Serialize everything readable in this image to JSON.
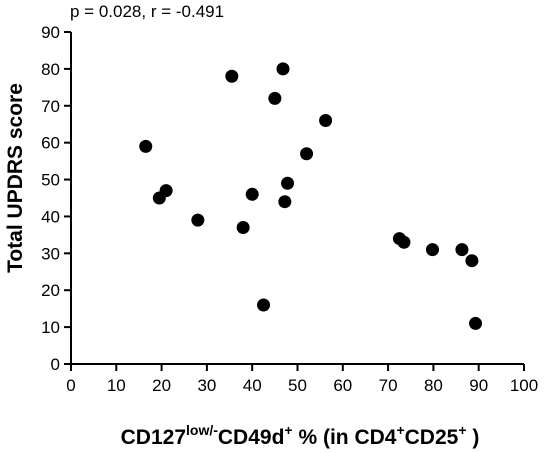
{
  "chart_data": {
    "type": "scatter",
    "annotation": "p = 0.028, r = -0.491",
    "xlabel": {
      "parts": [
        {
          "text": "CD127",
          "sup": false
        },
        {
          "text": "low/-",
          "sup": true
        },
        {
          "text": "CD49d",
          "sup": false
        },
        {
          "text": "+",
          "sup": true
        },
        {
          "text": " % (in CD4",
          "sup": false
        },
        {
          "text": "+",
          "sup": true
        },
        {
          "text": "CD25",
          "sup": false
        },
        {
          "text": "+",
          "sup": true
        },
        {
          "text": " )",
          "sup": false
        }
      ]
    },
    "ylabel": "Total UPDRS score",
    "xlim": [
      0,
      100
    ],
    "ylim": [
      0,
      90
    ],
    "xticks": [
      0,
      10,
      20,
      30,
      40,
      50,
      60,
      70,
      80,
      90,
      100
    ],
    "yticks": [
      0,
      10,
      20,
      30,
      40,
      50,
      60,
      70,
      80,
      90
    ],
    "grid": false,
    "points": [
      {
        "x": 16.5,
        "y": 59
      },
      {
        "x": 19.5,
        "y": 45
      },
      {
        "x": 21.0,
        "y": 47
      },
      {
        "x": 28.0,
        "y": 39
      },
      {
        "x": 35.5,
        "y": 78
      },
      {
        "x": 38.0,
        "y": 37
      },
      {
        "x": 40.0,
        "y": 46
      },
      {
        "x": 42.5,
        "y": 16
      },
      {
        "x": 45.0,
        "y": 72
      },
      {
        "x": 46.8,
        "y": 80
      },
      {
        "x": 47.2,
        "y": 44
      },
      {
        "x": 47.8,
        "y": 49
      },
      {
        "x": 52.0,
        "y": 57
      },
      {
        "x": 56.2,
        "y": 66
      },
      {
        "x": 72.5,
        "y": 34
      },
      {
        "x": 73.5,
        "y": 33
      },
      {
        "x": 79.8,
        "y": 31
      },
      {
        "x": 86.3,
        "y": 31
      },
      {
        "x": 88.5,
        "y": 28
      },
      {
        "x": 89.3,
        "y": 11
      }
    ]
  }
}
